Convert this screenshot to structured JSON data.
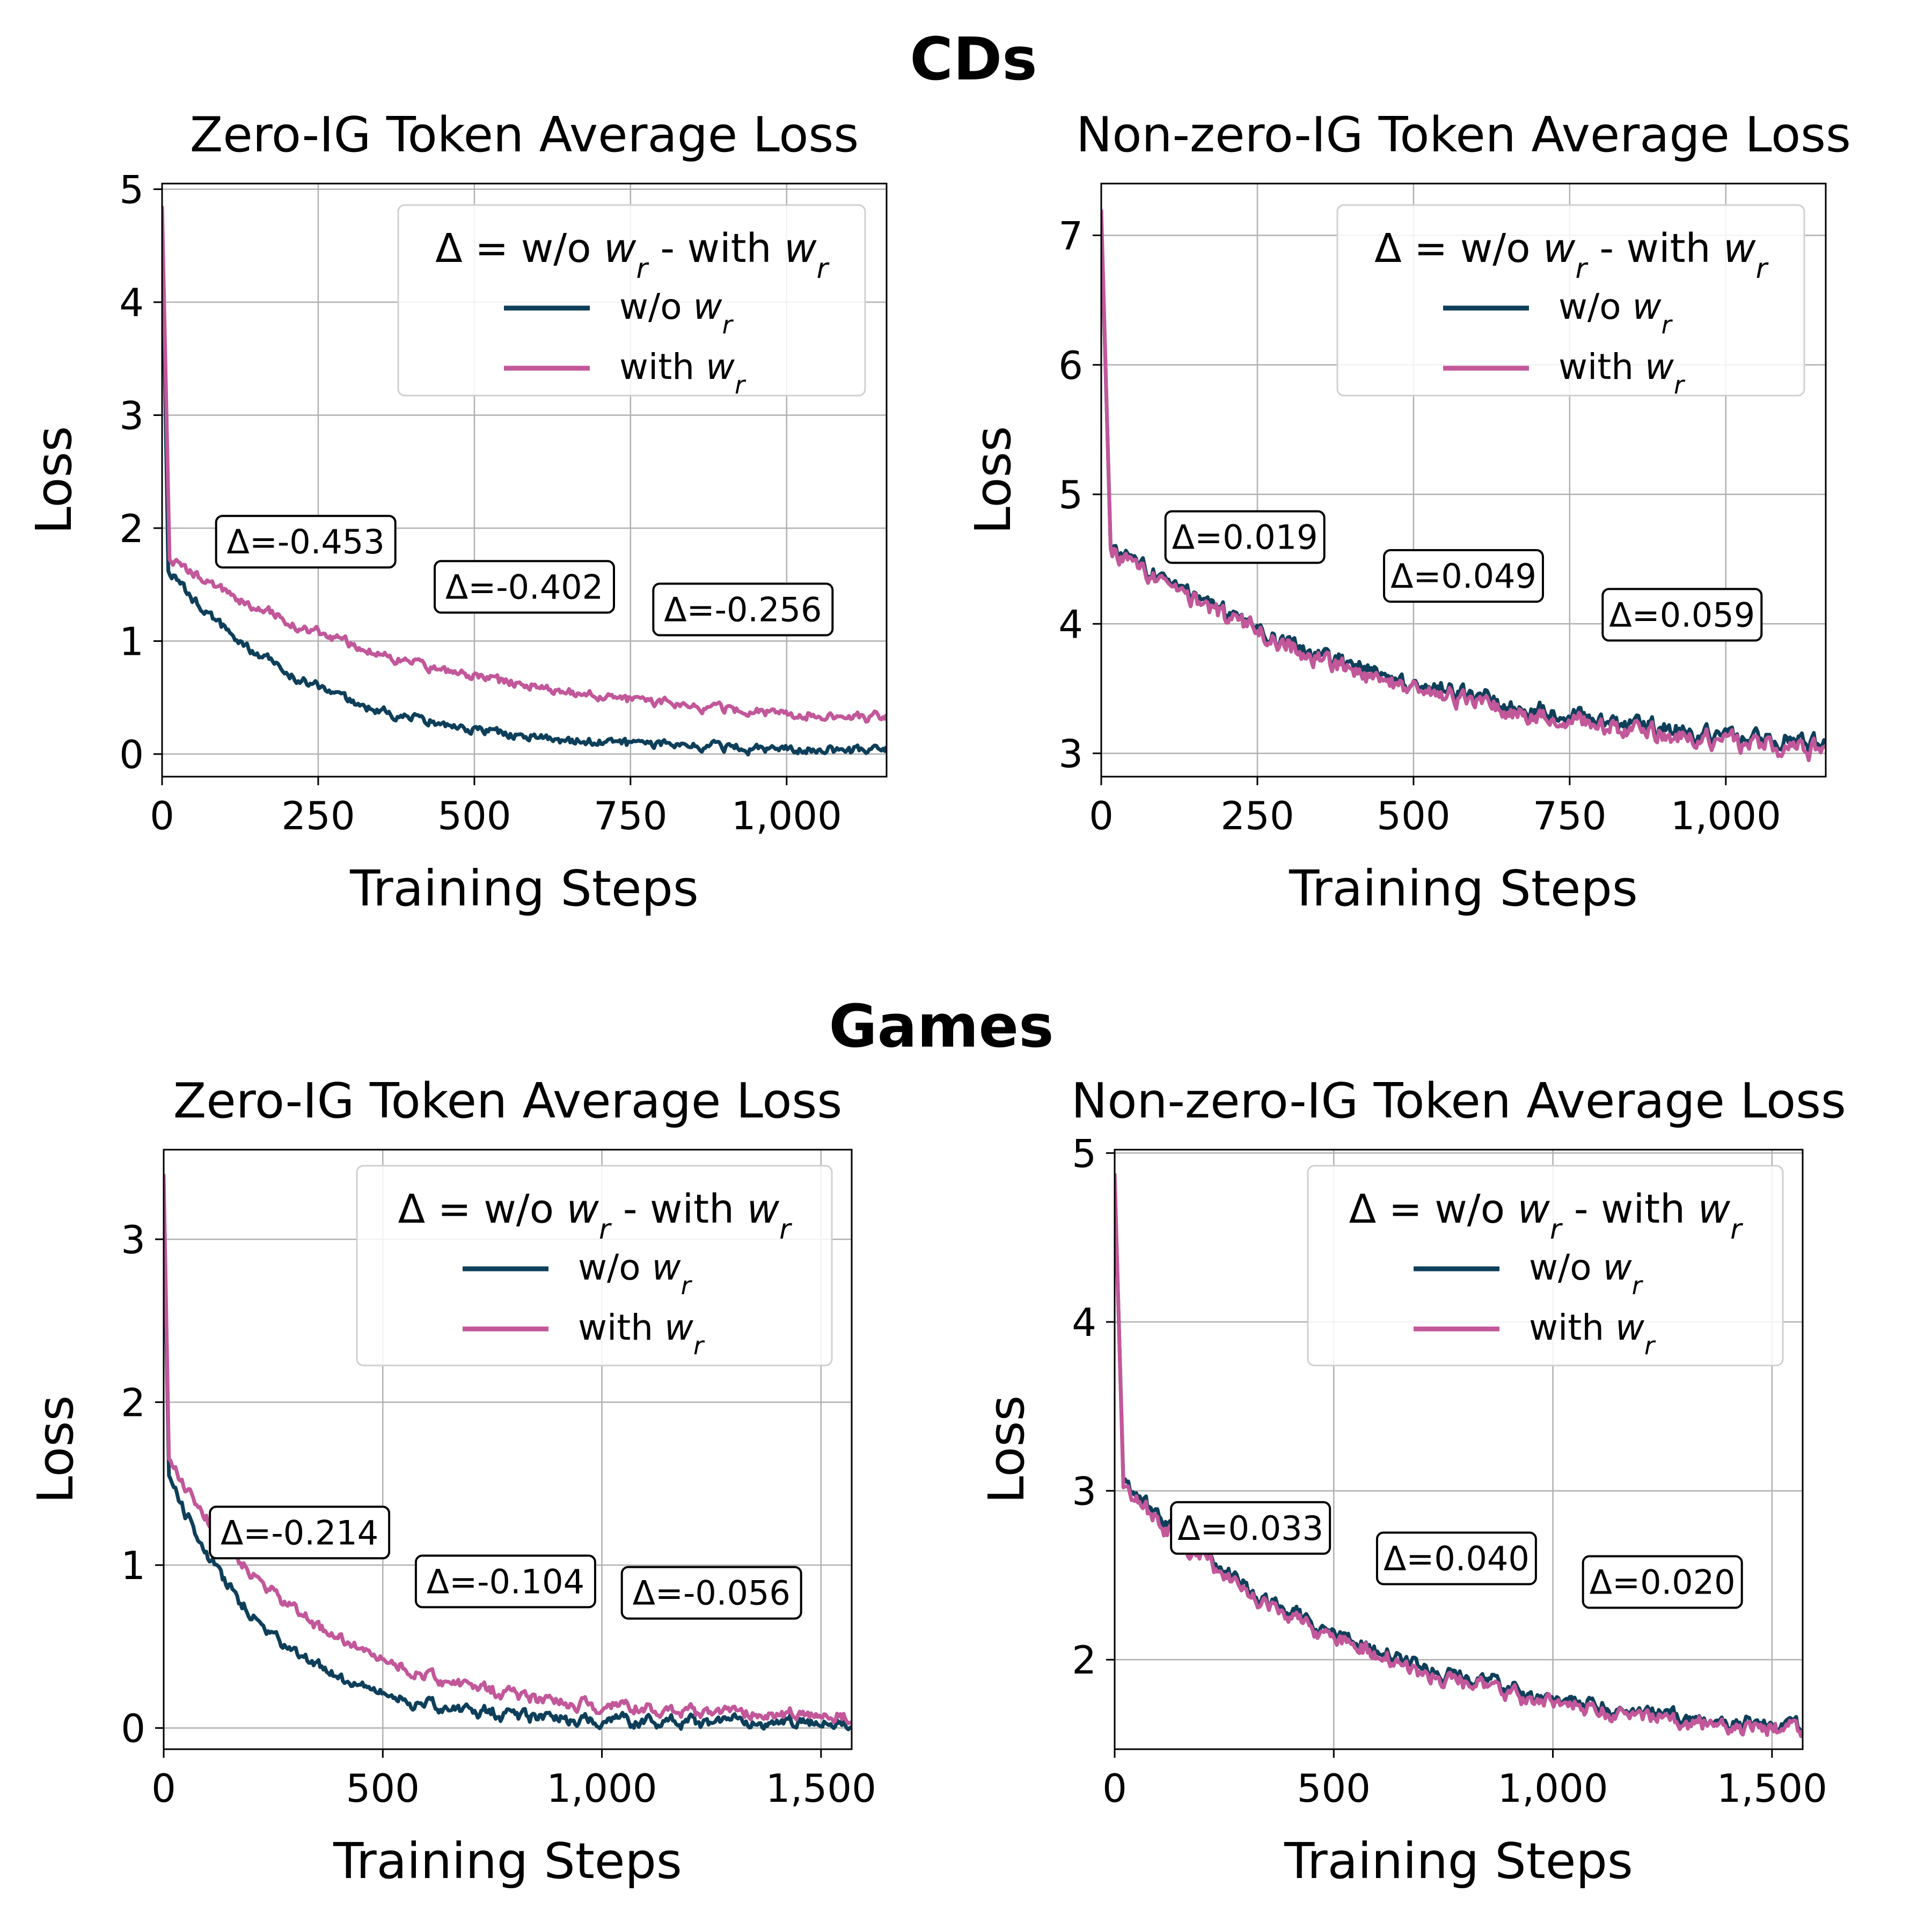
{
  "groups": [
    "CDs",
    "Games"
  ],
  "legend": {
    "title_prefix": "Δ = w/o ",
    "title_mid": " - with ",
    "math_w": "w",
    "math_r": "r",
    "series_labels": [
      "w/o ",
      "with "
    ]
  },
  "colors": {
    "without_wr": "#0e3f5a",
    "with_wr": "#c2579a"
  },
  "chart_data": [
    {
      "id": "cds-zero",
      "group": "CDs",
      "type": "line",
      "title": "Zero-IG Token Average Loss",
      "xlabel": "Training Steps",
      "ylabel": "Loss",
      "xlim": [
        0,
        1160
      ],
      "ylim": [
        -0.2,
        5.05
      ],
      "xticks": [
        0,
        250,
        500,
        750,
        1000
      ],
      "xtick_labels": [
        "0",
        "250",
        "500",
        "750",
        "1,000"
      ],
      "yticks": [
        0,
        1,
        2,
        3,
        4,
        5
      ],
      "ytick_labels": [
        "0",
        "1",
        "2",
        "3",
        "4",
        "5"
      ],
      "series": [
        {
          "name": "w/o w_r",
          "key": "without_wr",
          "start": 4.8,
          "end": 0.03,
          "tau": 230,
          "jump_y": 1.62,
          "jump_x": 10,
          "noise": 0.035
        },
        {
          "name": "with w_r",
          "key": "with_wr",
          "start": 4.85,
          "end": 0.22,
          "tau": 420,
          "jump_y": 1.72,
          "jump_x": 12,
          "noise": 0.035
        }
      ],
      "annotations": [
        {
          "text": "Δ=-0.453",
          "x": 230,
          "y": 1.88
        },
        {
          "text": "Δ=-0.402",
          "x": 580,
          "y": 1.48
        },
        {
          "text": "Δ=-0.256",
          "x": 930,
          "y": 1.28
        }
      ]
    },
    {
      "id": "cds-nonzero",
      "group": "CDs",
      "type": "line",
      "title": "Non-zero-IG Token Average Loss",
      "xlabel": "Training Steps",
      "ylabel": "Loss",
      "xlim": [
        0,
        1160
      ],
      "ylim": [
        2.82,
        7.4
      ],
      "xticks": [
        0,
        250,
        500,
        750,
        1000
      ],
      "xtick_labels": [
        "0",
        "250",
        "500",
        "750",
        "1,000"
      ],
      "yticks": [
        3,
        4,
        5,
        6,
        7
      ],
      "ytick_labels": [
        "3",
        "4",
        "5",
        "6",
        "7"
      ],
      "series": [
        {
          "name": "w/o w_r",
          "key": "without_wr",
          "start": 7.15,
          "end": 2.9,
          "tau": 500,
          "jump_y": 4.6,
          "jump_x": 15,
          "noise": 0.06
        },
        {
          "name": "with w_r",
          "key": "with_wr",
          "start": 7.2,
          "end": 2.85,
          "tau": 500,
          "jump_y": 4.58,
          "jump_x": 15,
          "noise": 0.06
        }
      ],
      "annotations": [
        {
          "text": "Δ=0.019",
          "x": 230,
          "y": 4.67
        },
        {
          "text": "Δ=0.049",
          "x": 580,
          "y": 4.37
        },
        {
          "text": "Δ=0.059",
          "x": 930,
          "y": 4.07
        }
      ]
    },
    {
      "id": "games-zero",
      "group": "Games",
      "type": "line",
      "title": "Zero-IG Token Average Loss",
      "xlabel": "Training Steps",
      "ylabel": "Loss",
      "xlim": [
        0,
        1570
      ],
      "ylim": [
        -0.13,
        3.55
      ],
      "xticks": [
        0,
        500,
        1000,
        1500
      ],
      "xtick_labels": [
        "0",
        "500",
        "1,000",
        "1,500"
      ],
      "yticks": [
        0,
        1,
        2,
        3
      ],
      "ytick_labels": [
        "0",
        "1",
        "2",
        "3"
      ],
      "series": [
        {
          "name": "w/o w_r",
          "key": "without_wr",
          "start": 3.3,
          "end": 0.03,
          "tau": 230,
          "jump_y": 1.55,
          "jump_x": 12,
          "noise": 0.03
        },
        {
          "name": "with w_r",
          "key": "with_wr",
          "start": 3.4,
          "end": 0.06,
          "tau": 330,
          "jump_y": 1.65,
          "jump_x": 12,
          "noise": 0.03
        }
      ],
      "annotations": [
        {
          "text": "Δ=-0.214",
          "x": 310,
          "y": 1.2
        },
        {
          "text": "Δ=-0.104",
          "x": 780,
          "y": 0.9
        },
        {
          "text": "Δ=-0.056",
          "x": 1250,
          "y": 0.83
        }
      ]
    },
    {
      "id": "games-nonzero",
      "group": "Games",
      "type": "line",
      "title": "Non-zero-IG Token Average Loss",
      "xlabel": "Training Steps",
      "ylabel": "Loss",
      "xlim": [
        0,
        1570
      ],
      "ylim": [
        1.47,
        5.02
      ],
      "xticks": [
        0,
        500,
        1000,
        1500
      ],
      "xtick_labels": [
        "0",
        "500",
        "1,000",
        "1,500"
      ],
      "yticks": [
        2,
        3,
        4,
        5
      ],
      "ytick_labels": [
        "2",
        "3",
        "4",
        "5"
      ],
      "series": [
        {
          "name": "w/o w_r",
          "key": "without_wr",
          "start": 4.85,
          "end": 1.5,
          "tau": 560,
          "jump_y": 3.05,
          "jump_x": 20,
          "noise": 0.04
        },
        {
          "name": "with w_r",
          "key": "with_wr",
          "start": 4.88,
          "end": 1.48,
          "tau": 560,
          "jump_y": 3.02,
          "jump_x": 20,
          "noise": 0.04
        }
      ],
      "annotations": [
        {
          "text": "Δ=0.033",
          "x": 310,
          "y": 2.78
        },
        {
          "text": "Δ=0.040",
          "x": 780,
          "y": 2.6
        },
        {
          "text": "Δ=0.020",
          "x": 1250,
          "y": 2.46
        }
      ]
    }
  ]
}
